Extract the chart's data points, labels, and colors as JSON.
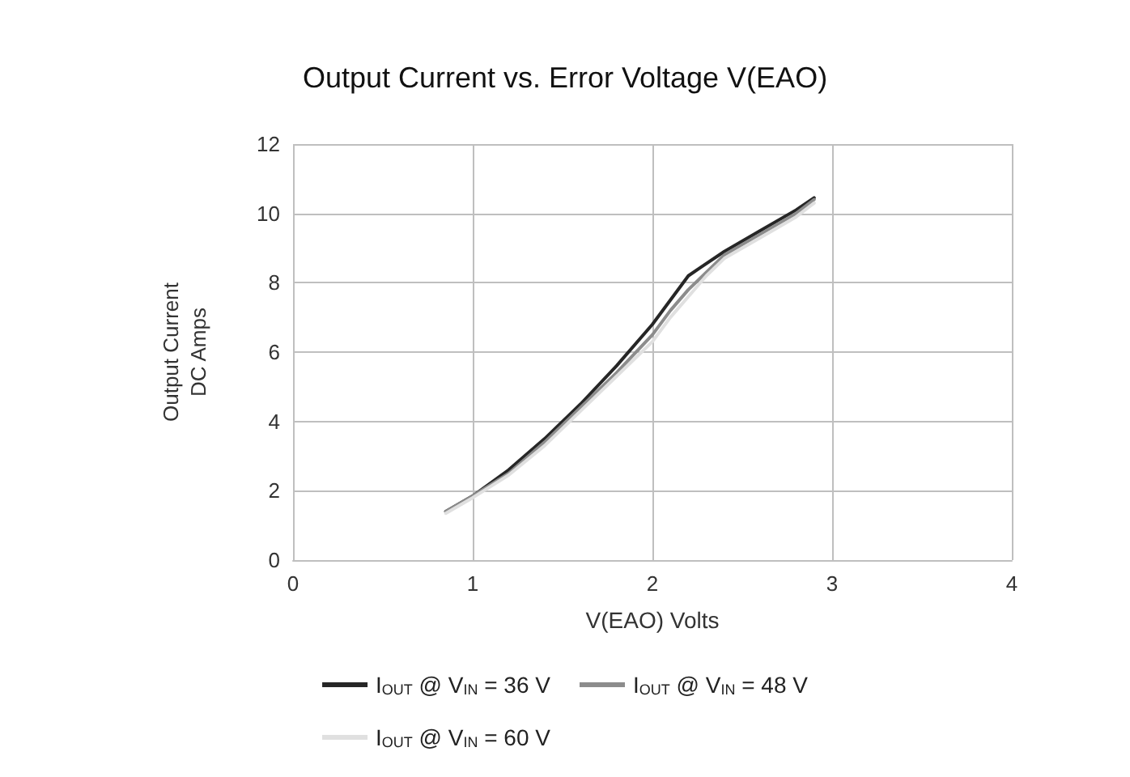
{
  "chart_data": {
    "type": "line",
    "title": "Output Current vs. Error Voltage V(EAO)",
    "xlabel": "V(EAO) Volts",
    "ylabel": "Output Current\nDC Amps",
    "xlim": [
      0,
      4
    ],
    "xticks": [
      0,
      1,
      2,
      3,
      4
    ],
    "ylim": [
      0,
      12
    ],
    "yticks": [
      0,
      2,
      4,
      6,
      8,
      10,
      12
    ],
    "grid": true,
    "legend": "bottom",
    "marker": "none",
    "line_style": "solid",
    "series": [
      {
        "name": "I$_{OUT}$ @ V$_{IN}$ = 36 V",
        "color": "#262626",
        "x": [
          0.85,
          1.0,
          1.2,
          1.4,
          1.6,
          1.8,
          2.0,
          2.1,
          2.2,
          2.27,
          2.4,
          2.6,
          2.8,
          2.9
        ],
        "values": [
          1.4,
          1.85,
          2.6,
          3.5,
          4.5,
          5.6,
          6.8,
          7.5,
          8.2,
          8.45,
          8.9,
          9.5,
          10.1,
          10.45
        ]
      },
      {
        "name": "I$_{OUT}$ @ V$_{IN}$ = 48 V",
        "color": "#8c8c8c",
        "x": [
          0.85,
          1.0,
          1.2,
          1.4,
          1.6,
          1.8,
          2.0,
          2.1,
          2.2,
          2.3,
          2.4,
          2.6,
          2.8,
          2.9
        ],
        "values": [
          1.4,
          1.85,
          2.5,
          3.4,
          4.4,
          5.4,
          6.5,
          7.2,
          7.8,
          8.3,
          8.8,
          9.4,
          10.0,
          10.4
        ]
      },
      {
        "name": "I$_{OUT}$ @ V$_{IN}$ = 60 V",
        "color": "#e0e0e0",
        "x": [
          0.85,
          1.0,
          1.2,
          1.4,
          1.6,
          1.8,
          2.0,
          2.1,
          2.2,
          2.3,
          2.4,
          2.6,
          2.8,
          2.9
        ],
        "values": [
          1.35,
          1.8,
          2.45,
          3.3,
          4.3,
          5.3,
          6.3,
          7.0,
          7.6,
          8.2,
          8.7,
          9.3,
          9.9,
          10.3
        ]
      }
    ]
  }
}
